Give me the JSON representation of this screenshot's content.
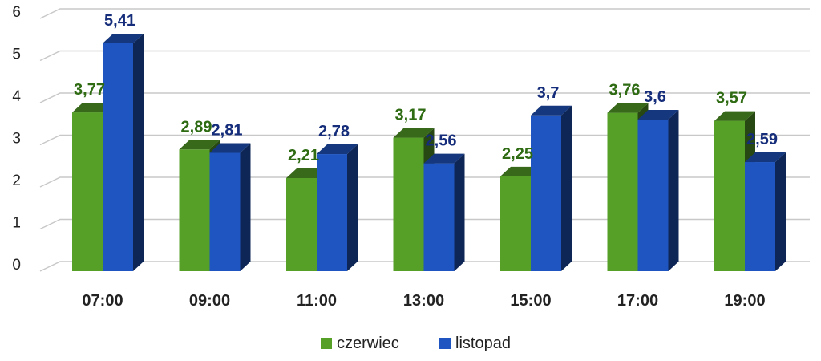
{
  "chart_data": {
    "type": "bar",
    "categories": [
      "07:00",
      "09:00",
      "11:00",
      "13:00",
      "15:00",
      "17:00",
      "19:00"
    ],
    "series": [
      {
        "name": "czerwiec",
        "values": [
          3.77,
          2.89,
          2.21,
          3.17,
          2.25,
          3.76,
          3.57
        ],
        "labels": [
          "3,77",
          "2,89",
          "2,21",
          "3,17",
          "2,25",
          "3,76",
          "3,57"
        ],
        "color": "#56a028",
        "label_color": "#2e6b12"
      },
      {
        "name": "listopad",
        "values": [
          5.41,
          2.81,
          2.78,
          2.56,
          3.7,
          3.6,
          2.59
        ],
        "labels": [
          "5,41",
          "2,81",
          "2,78",
          "2,56",
          "3,7",
          "3,6",
          "2,59"
        ],
        "color": "#1f55c0",
        "label_color": "#152d7a"
      }
    ],
    "ylim": [
      0,
      6
    ],
    "yticks": [
      "0",
      "1",
      "2",
      "3",
      "4",
      "5",
      "6"
    ],
    "grid": true,
    "legend_position": "bottom",
    "style": "3d-column"
  }
}
